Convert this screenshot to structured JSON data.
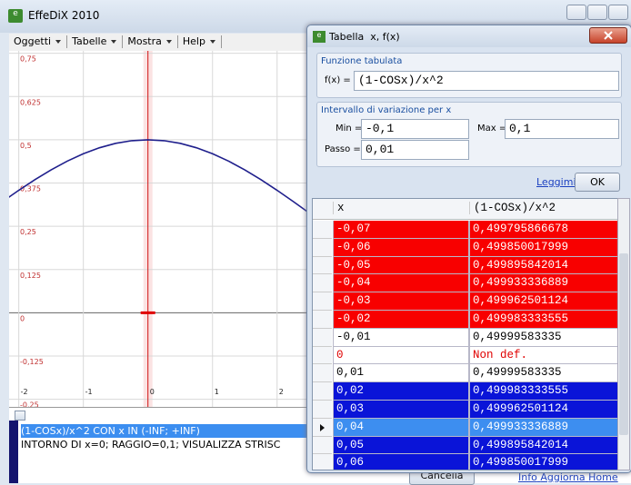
{
  "main_window": {
    "title": "EffeDiX 2010",
    "menu": [
      "Oggetti",
      "Tabelle",
      "Mostra",
      "Help"
    ],
    "graph": {
      "type": "line",
      "xlim": [
        -2.15,
        7.48
      ],
      "ylim": [
        -0.272,
        0.757
      ],
      "xticks": [
        -2,
        -1,
        0,
        1,
        2
      ],
      "yticks": [
        {
          "value": 0.75,
          "label": "0,75"
        },
        {
          "value": 0.625,
          "label": "0,625"
        },
        {
          "value": 0.5,
          "label": "0,5"
        },
        {
          "value": 0.375,
          "label": "0,375"
        },
        {
          "value": 0.25,
          "label": "0,25"
        },
        {
          "value": 0.125,
          "label": "0,125"
        },
        0,
        {
          "value": -0.125,
          "label": "-0,125"
        },
        {
          "value": -0.25,
          "label": "-0,25"
        }
      ],
      "grid": true,
      "series": [
        {
          "color": "#1f1f8c",
          "x": [
            -2.5,
            -2.25,
            -2,
            -1.75,
            -1.5,
            -1.25,
            -1,
            -0.75,
            -0.5,
            -0.25,
            0,
            0.25,
            0.5,
            0.75,
            1,
            1.25,
            1.5,
            1.75,
            2,
            2.25,
            2.5
          ],
          "values": [
            0.2882,
            0.3216,
            0.354,
            0.3847,
            0.413,
            0.4382,
            0.4597,
            0.477,
            0.4897,
            0.4974,
            0.5,
            0.4974,
            0.4897,
            0.477,
            0.4597,
            0.4382,
            0.413,
            0.3847,
            0.354,
            0.3216,
            0.2882
          ]
        }
      ]
    },
    "commands": [
      "(1-COSx)/x^2 CON x IN (-INF; +INF)",
      "INTORNO DI x=0; RAGGIO=0,1; VISUALIZZA STRISC"
    ],
    "cancel_button": "Cancella",
    "links": [
      "Info",
      "Aggiorna",
      "Home"
    ]
  },
  "dialog": {
    "title": "Tabella  x, f(x)",
    "function_group": {
      "title": "Funzione tabulata",
      "label": "f(x) =",
      "value": "(1-COSx)/x^2"
    },
    "interval_group": {
      "title": "Intervallo di variazione per x",
      "min_label": "Min =",
      "min": "-0,1",
      "max_label": "Max =",
      "max": "0,1",
      "step_label": "Passo =",
      "step": "0,01"
    },
    "readme_link": "Leggimi",
    "ok_button": "OK",
    "table": {
      "columns": [
        "x",
        "(1-COSx)/x^2"
      ],
      "rows": [
        {
          "cells": [
            "-0,07",
            "0,499795866678"
          ],
          "background": "#f80000",
          "text_color": "#ffffff"
        },
        {
          "cells": [
            "-0,06",
            "0,499850017999"
          ],
          "background": "#f80000",
          "text_color": "#ffffff"
        },
        {
          "cells": [
            "-0,05",
            "0,499895842014"
          ],
          "background": "#f80000",
          "text_color": "#ffffff"
        },
        {
          "cells": [
            "-0,04",
            "0,499933336889"
          ],
          "background": "#f80000",
          "text_color": "#ffffff"
        },
        {
          "cells": [
            "-0,03",
            "0,499962501124"
          ],
          "background": "#f80000",
          "text_color": "#ffffff"
        },
        {
          "cells": [
            "-0,02",
            "0,499983333555"
          ],
          "background": "#f80000",
          "text_color": "#ffffff"
        },
        {
          "cells": [
            "-0,01",
            "0,49999583335"
          ],
          "background": "#ffffff",
          "text_color": "#000000"
        },
        {
          "cells": [
            "0",
            "Non def."
          ],
          "background": "#ffffff",
          "text_color": "#e00000"
        },
        {
          "cells": [
            "0,01",
            "0,49999583335"
          ],
          "background": "#ffffff",
          "text_color": "#000000"
        },
        {
          "cells": [
            "0,02",
            "0,499983333555"
          ],
          "background": "#0a14d8",
          "text_color": "#ffffff"
        },
        {
          "cells": [
            "0,03",
            "0,499962501124"
          ],
          "background": "#0a14d8",
          "text_color": "#ffffff"
        },
        {
          "cells": [
            "0,04",
            "0,499933336889"
          ],
          "background": "#3d8ef0",
          "text_color": "#ffffff",
          "selected": true
        },
        {
          "cells": [
            "0,05",
            "0,499895842014"
          ],
          "background": "#0a14d8",
          "text_color": "#ffffff"
        },
        {
          "cells": [
            "0,06",
            "0,499850017999"
          ],
          "background": "#0a14d8",
          "text_color": "#ffffff"
        }
      ]
    }
  }
}
